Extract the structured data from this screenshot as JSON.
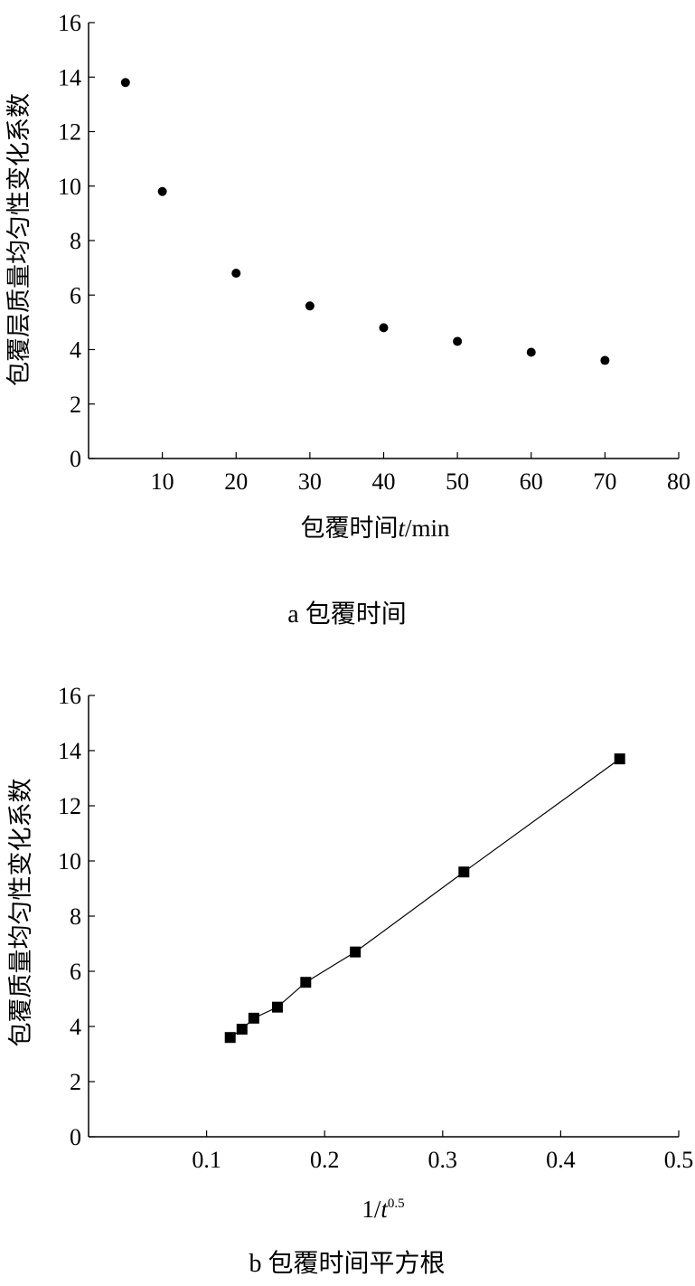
{
  "chart_data": [
    {
      "type": "scatter",
      "caption": "a 包覆时间",
      "xlabel_parts": [
        "包覆时间",
        "t",
        "/min"
      ],
      "ylabel": "包覆层质量均匀性变化系数",
      "xlim": [
        0,
        80
      ],
      "ylim": [
        0,
        16
      ],
      "xticks": [
        10,
        20,
        30,
        40,
        50,
        60,
        70,
        80
      ],
      "yticks": [
        0,
        2,
        4,
        6,
        8,
        10,
        12,
        14,
        16
      ],
      "grid": false,
      "marker": "circle",
      "connect_line": false,
      "points": [
        {
          "x": 5,
          "y": 13.8
        },
        {
          "x": 10,
          "y": 9.8
        },
        {
          "x": 20,
          "y": 6.8
        },
        {
          "x": 30,
          "y": 5.6
        },
        {
          "x": 40,
          "y": 4.8
        },
        {
          "x": 50,
          "y": 4.3
        },
        {
          "x": 60,
          "y": 3.9
        },
        {
          "x": 70,
          "y": 3.6
        }
      ]
    },
    {
      "type": "line",
      "caption": "b 包覆时间平方根",
      "xlabel_parts": [
        "1/",
        "t",
        "0.5"
      ],
      "ylabel": "包覆质量均匀性变化系数",
      "xlim": [
        0,
        0.5
      ],
      "ylim": [
        0,
        16
      ],
      "xticks": [
        0.1,
        0.2,
        0.3,
        0.4,
        0.5
      ],
      "yticks": [
        0,
        2,
        4,
        6,
        8,
        10,
        12,
        14,
        16
      ],
      "grid": false,
      "marker": "square",
      "connect_line": true,
      "points": [
        {
          "x": 0.12,
          "y": 3.6
        },
        {
          "x": 0.13,
          "y": 3.9
        },
        {
          "x": 0.14,
          "y": 4.3
        },
        {
          "x": 0.16,
          "y": 4.7
        },
        {
          "x": 0.184,
          "y": 5.6
        },
        {
          "x": 0.226,
          "y": 6.7
        },
        {
          "x": 0.318,
          "y": 9.6
        },
        {
          "x": 0.45,
          "y": 13.7
        }
      ]
    }
  ]
}
